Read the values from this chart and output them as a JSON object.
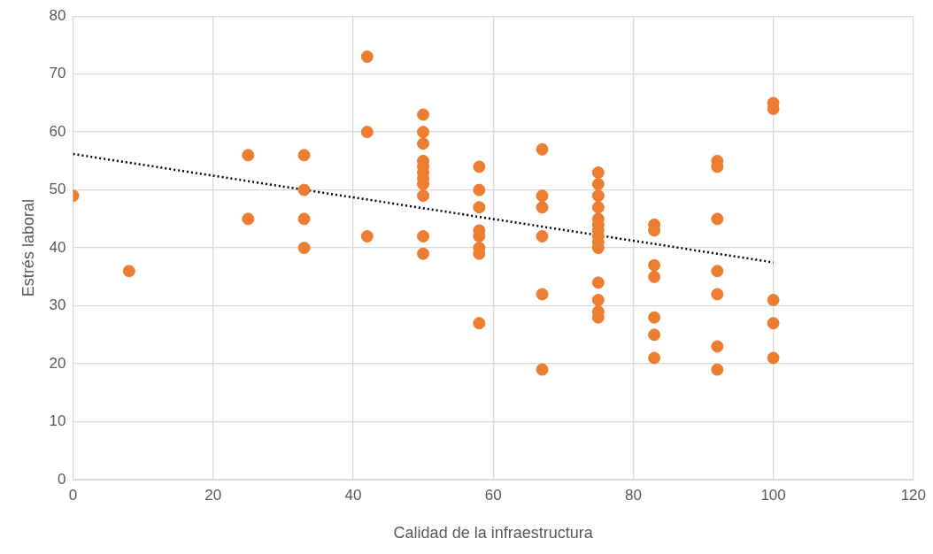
{
  "chart_data": {
    "type": "scatter",
    "xlabel": "Calidad de la infraestructura",
    "ylabel": "Estrés laboral",
    "xlim": [
      0,
      120
    ],
    "xticks": [
      0,
      20,
      40,
      60,
      80,
      100,
      120
    ],
    "ylim": [
      0,
      80
    ],
    "yticks": [
      0,
      10,
      20,
      30,
      40,
      50,
      60,
      70,
      80
    ],
    "grid": true,
    "marker": "circle",
    "series": [
      {
        "color": "#ed7d31",
        "x": [
          0,
          8,
          25,
          25,
          33,
          33,
          33,
          33,
          42,
          42,
          42,
          50,
          50,
          50,
          50,
          50,
          50,
          50,
          50,
          50,
          50,
          50,
          58,
          58,
          58,
          58,
          58,
          58,
          58,
          58,
          67,
          67,
          67,
          67,
          67,
          67,
          75,
          75,
          75,
          75,
          75,
          75,
          75,
          75,
          75,
          75,
          75,
          75,
          75,
          75,
          83,
          83,
          83,
          83,
          83,
          83,
          83,
          92,
          92,
          92,
          92,
          92,
          92,
          92,
          100,
          100,
          100,
          100,
          100
        ],
        "values": [
          49,
          36,
          56,
          45,
          56,
          50,
          45,
          40,
          73,
          60,
          42,
          63,
          60,
          58,
          55,
          54,
          53,
          52,
          51,
          49,
          42,
          39,
          54,
          50,
          47,
          43,
          42,
          40,
          39,
          27,
          57,
          49,
          47,
          42,
          32,
          19,
          53,
          51,
          49,
          47,
          45,
          44,
          43,
          42,
          41,
          40,
          34,
          31,
          29,
          28,
          44,
          43,
          37,
          35,
          28,
          25,
          21,
          55,
          54,
          45,
          36,
          32,
          23,
          19,
          65,
          64,
          31,
          27,
          21
        ]
      },
      {
        "type": "line",
        "color": "#000000",
        "line_style": "dotted",
        "marker": "none",
        "x": [
          0,
          100
        ],
        "values": [
          56.2,
          37.5
        ]
      }
    ]
  }
}
